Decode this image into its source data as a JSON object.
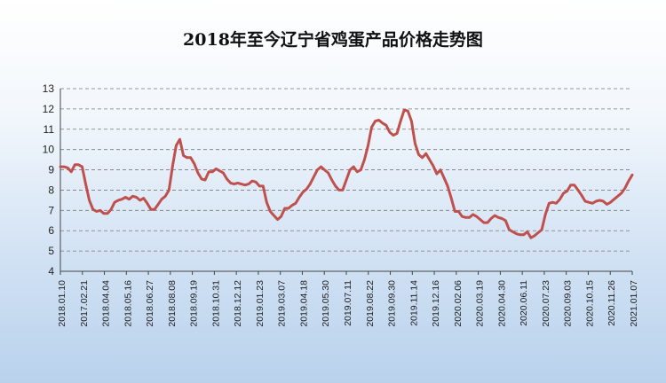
{
  "chart_data": {
    "type": "line",
    "title": "2018年至今辽宁省鸡蛋产品价格走势图",
    "xlabel": "",
    "ylabel": "",
    "ylim": [
      4,
      13
    ],
    "yticks": [
      4,
      5,
      6,
      7,
      8,
      9,
      10,
      11,
      12,
      13
    ],
    "grid": true,
    "legend": "none",
    "x_tick_labels": [
      "2018.01.10",
      "2017.02.21",
      "2018.04.04",
      "2018.05.16",
      "2018.06.27",
      "2018.08.08",
      "2018.09.19",
      "2018.10.31",
      "2018.12.12",
      "2019.01.23",
      "2019.03.07",
      "2019.04.18",
      "2019.05.30",
      "2019.07.11",
      "2019.08.22",
      "2019.09.30",
      "2019.11.14",
      "2019.12.16",
      "2020.02.06",
      "2020.03.19",
      "2020.04.30",
      "2020.06.11",
      "2020.07.23",
      "2020.09.03",
      "2020.10.15",
      "2020.11.26",
      "2021.01.07"
    ],
    "series": [
      {
        "color": "#c0504d",
        "values": [
          9.15,
          9.15,
          9.1,
          8.9,
          9.25,
          9.25,
          9.15,
          8.3,
          7.5,
          7.05,
          6.95,
          7.0,
          6.85,
          6.85,
          7.05,
          7.4,
          7.5,
          7.55,
          7.65,
          7.55,
          7.7,
          7.65,
          7.5,
          7.6,
          7.35,
          7.05,
          7.05,
          7.3,
          7.55,
          7.7,
          8.0,
          9.2,
          10.2,
          10.5,
          9.7,
          9.6,
          9.6,
          9.3,
          8.85,
          8.55,
          8.5,
          8.9,
          8.9,
          9.05,
          8.95,
          8.85,
          8.55,
          8.35,
          8.3,
          8.35,
          8.3,
          8.25,
          8.3,
          8.45,
          8.4,
          8.2,
          8.2,
          7.4,
          6.95,
          6.75,
          6.55,
          6.7,
          7.1,
          7.1,
          7.25,
          7.35,
          7.65,
          7.9,
          8.05,
          8.3,
          8.65,
          9.0,
          9.15,
          9.0,
          8.85,
          8.5,
          8.2,
          8.0,
          8.0,
          8.5,
          9.0,
          9.15,
          8.9,
          9.0,
          9.5,
          10.2,
          11.1,
          11.4,
          11.45,
          11.3,
          11.2,
          10.85,
          10.7,
          10.8,
          11.4,
          11.95,
          11.9,
          11.4,
          10.3,
          9.75,
          9.6,
          9.8,
          9.5,
          9.2,
          8.8,
          9.0,
          8.6,
          8.2,
          7.6,
          6.95,
          6.95,
          6.7,
          6.65,
          6.65,
          6.8,
          6.7,
          6.55,
          6.4,
          6.4,
          6.6,
          6.75,
          6.65,
          6.6,
          6.5,
          6.05,
          5.95,
          5.85,
          5.8,
          5.8,
          5.95,
          5.65,
          5.75,
          5.9,
          6.05,
          6.8,
          7.35,
          7.4,
          7.35,
          7.55,
          7.85,
          7.95,
          8.25,
          8.25,
          8.0,
          7.75,
          7.45,
          7.4,
          7.35,
          7.45,
          7.5,
          7.45,
          7.3,
          7.4,
          7.55,
          7.7,
          7.85,
          8.1,
          8.45,
          8.75
        ]
      }
    ]
  }
}
